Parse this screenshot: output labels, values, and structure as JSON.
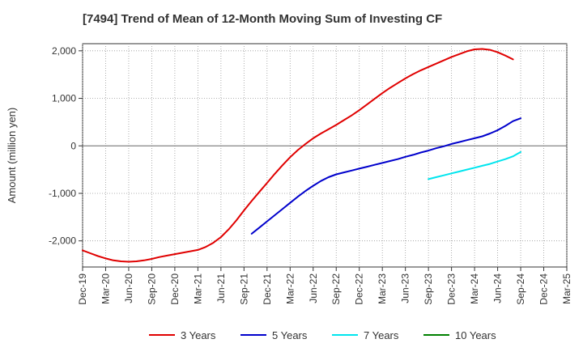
{
  "chart_data": {
    "type": "line",
    "title": "[7494]  Trend of Mean of 12-Month Moving Sum of Investing CF",
    "xlabel": "",
    "ylabel": "Amount (million yen)",
    "ylim": [
      -2550,
      2150
    ],
    "yticks": [
      2000,
      1000,
      0,
      -1000,
      -2000
    ],
    "ytick_labels": [
      "2,000",
      "1,000",
      "0",
      "-1,000",
      "-2,000"
    ],
    "x_start": "Dec-19",
    "x_end": "Mar-25",
    "xtick_labels": [
      "Dec-19",
      "Mar-20",
      "Jun-20",
      "Sep-20",
      "Dec-20",
      "Mar-21",
      "Jun-21",
      "Sep-21",
      "Dec-21",
      "Mar-22",
      "Jun-22",
      "Sep-22",
      "Dec-22",
      "Mar-23",
      "Jun-23",
      "Sep-23",
      "Dec-23",
      "Mar-24",
      "Jun-24",
      "Sep-24",
      "Dec-24",
      "Mar-25"
    ],
    "grid": true,
    "legend_position": "bottom",
    "series": [
      {
        "name": "3 Years",
        "color": "#e00000",
        "points": [
          [
            "Dec-19",
            -2200
          ],
          [
            "Jan-20",
            -2260
          ],
          [
            "Feb-20",
            -2320
          ],
          [
            "Mar-20",
            -2370
          ],
          [
            "Apr-20",
            -2410
          ],
          [
            "May-20",
            -2430
          ],
          [
            "Jun-20",
            -2440
          ],
          [
            "Jul-20",
            -2430
          ],
          [
            "Aug-20",
            -2410
          ],
          [
            "Sep-20",
            -2380
          ],
          [
            "Oct-20",
            -2340
          ],
          [
            "Nov-20",
            -2310
          ],
          [
            "Dec-20",
            -2280
          ],
          [
            "Jan-21",
            -2250
          ],
          [
            "Feb-21",
            -2220
          ],
          [
            "Mar-21",
            -2190
          ],
          [
            "Apr-21",
            -2130
          ],
          [
            "May-21",
            -2040
          ],
          [
            "Jun-21",
            -1920
          ],
          [
            "Jul-21",
            -1760
          ],
          [
            "Aug-21",
            -1570
          ],
          [
            "Sep-21",
            -1360
          ],
          [
            "Oct-21",
            -1160
          ],
          [
            "Nov-21",
            -970
          ],
          [
            "Dec-21",
            -780
          ],
          [
            "Jan-22",
            -590
          ],
          [
            "Feb-22",
            -410
          ],
          [
            "Mar-22",
            -240
          ],
          [
            "Apr-22",
            -90
          ],
          [
            "May-22",
            40
          ],
          [
            "Jun-22",
            160
          ],
          [
            "Jul-22",
            260
          ],
          [
            "Aug-22",
            350
          ],
          [
            "Sep-22",
            440
          ],
          [
            "Oct-22",
            540
          ],
          [
            "Nov-22",
            640
          ],
          [
            "Dec-22",
            750
          ],
          [
            "Jan-23",
            870
          ],
          [
            "Feb-23",
            990
          ],
          [
            "Mar-23",
            1110
          ],
          [
            "Apr-23",
            1220
          ],
          [
            "May-23",
            1320
          ],
          [
            "Jun-23",
            1420
          ],
          [
            "Jul-23",
            1510
          ],
          [
            "Aug-23",
            1590
          ],
          [
            "Sep-23",
            1660
          ],
          [
            "Oct-23",
            1730
          ],
          [
            "Nov-23",
            1800
          ],
          [
            "Dec-23",
            1870
          ],
          [
            "Jan-24",
            1930
          ],
          [
            "Feb-24",
            1990
          ],
          [
            "Mar-24",
            2030
          ],
          [
            "Apr-24",
            2040
          ],
          [
            "May-24",
            2020
          ],
          [
            "Jun-24",
            1970
          ],
          [
            "Jul-24",
            1900
          ],
          [
            "Aug-24",
            1820
          ]
        ]
      },
      {
        "name": "5 Years",
        "color": "#0000cc",
        "points": [
          [
            "Oct-21",
            -1850
          ],
          [
            "Nov-21",
            -1720
          ],
          [
            "Dec-21",
            -1590
          ],
          [
            "Jan-22",
            -1460
          ],
          [
            "Feb-22",
            -1330
          ],
          [
            "Mar-22",
            -1200
          ],
          [
            "Apr-22",
            -1070
          ],
          [
            "May-22",
            -950
          ],
          [
            "Jun-22",
            -840
          ],
          [
            "Jul-22",
            -740
          ],
          [
            "Aug-22",
            -660
          ],
          [
            "Sep-22",
            -600
          ],
          [
            "Oct-22",
            -560
          ],
          [
            "Nov-22",
            -520
          ],
          [
            "Dec-22",
            -480
          ],
          [
            "Jan-23",
            -440
          ],
          [
            "Feb-23",
            -400
          ],
          [
            "Mar-23",
            -360
          ],
          [
            "Apr-23",
            -320
          ],
          [
            "May-23",
            -280
          ],
          [
            "Jun-23",
            -230
          ],
          [
            "Jul-23",
            -190
          ],
          [
            "Aug-23",
            -140
          ],
          [
            "Sep-23",
            -100
          ],
          [
            "Oct-23",
            -50
          ],
          [
            "Nov-23",
            -10
          ],
          [
            "Dec-23",
            40
          ],
          [
            "Jan-24",
            80
          ],
          [
            "Feb-24",
            120
          ],
          [
            "Mar-24",
            160
          ],
          [
            "Apr-24",
            200
          ],
          [
            "May-24",
            260
          ],
          [
            "Jun-24",
            330
          ],
          [
            "Jul-24",
            420
          ],
          [
            "Aug-24",
            520
          ],
          [
            "Sep-24",
            580
          ]
        ]
      },
      {
        "name": "7 Years",
        "color": "#00e5ee",
        "points": [
          [
            "Sep-23",
            -700
          ],
          [
            "Oct-23",
            -660
          ],
          [
            "Nov-23",
            -620
          ],
          [
            "Dec-23",
            -580
          ],
          [
            "Jan-24",
            -540
          ],
          [
            "Feb-24",
            -500
          ],
          [
            "Mar-24",
            -460
          ],
          [
            "Apr-24",
            -420
          ],
          [
            "May-24",
            -380
          ],
          [
            "Jun-24",
            -330
          ],
          [
            "Jul-24",
            -280
          ],
          [
            "Aug-24",
            -220
          ],
          [
            "Sep-24",
            -130
          ]
        ]
      },
      {
        "name": "10 Years",
        "color": "#008000",
        "points": []
      }
    ]
  }
}
